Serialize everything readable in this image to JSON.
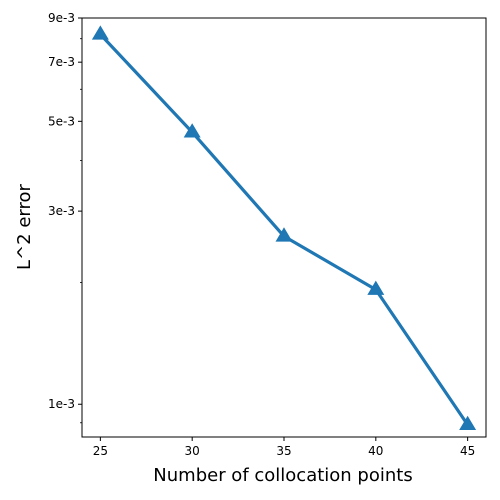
{
  "chart_data": {
    "type": "line",
    "title": "",
    "xlabel": "Number of collocation points",
    "ylabel": "L^2 error",
    "yscale": "log",
    "grid": false,
    "x": [
      25,
      30,
      35,
      40,
      45
    ],
    "series": [
      {
        "values": [
          0.0082,
          0.0047,
          0.0026,
          0.00192,
          0.00089
        ],
        "color": "#1f77b4",
        "marker": "triangle-up"
      }
    ],
    "xlim": [
      24,
      46
    ],
    "ylim": [
      0.00083,
      0.009
    ],
    "xticks": [
      25,
      30,
      35,
      40,
      45
    ],
    "xtick_labels": [
      "25",
      "30",
      "35",
      "40",
      "45"
    ],
    "yticks": [
      0.001,
      0.003,
      0.005,
      0.007,
      0.009
    ],
    "ytick_labels": [
      "1e-3",
      "3e-3",
      "5e-3",
      "7e-3",
      "9e-3"
    ]
  }
}
